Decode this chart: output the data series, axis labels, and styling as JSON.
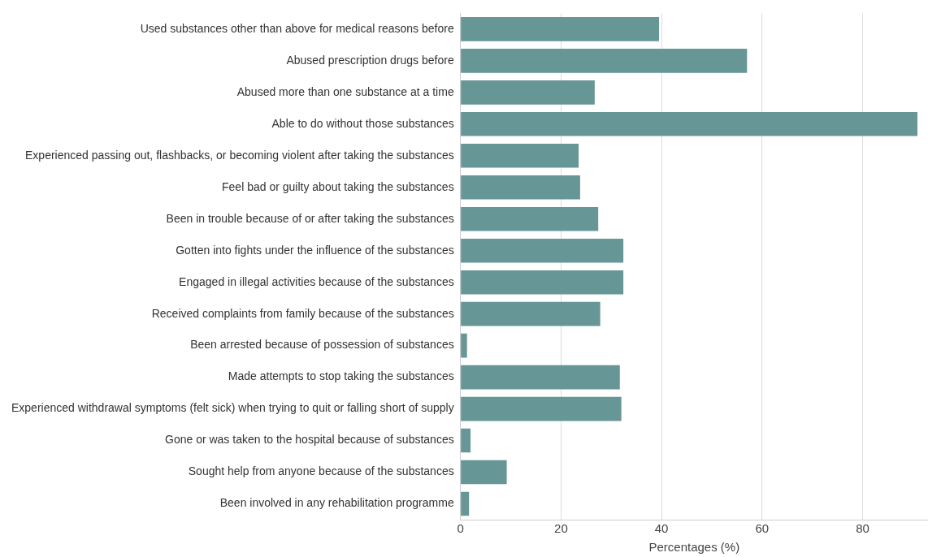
{
  "chart_data": {
    "type": "bar",
    "orientation": "horizontal",
    "xlabel": "Percentages (%)",
    "categories": [
      "Used substances other than above for medical reasons before",
      "Abused prescription drugs before",
      "Abused more than one substance at a time",
      "Able to do without those substances",
      "Experienced passing out, flashbacks, or becoming violent after taking the substances",
      "Feel bad or guilty about taking the substances",
      "Been in trouble because of or after taking the substances",
      "Gotten into fights under the influence of the substances",
      "Engaged in illegal activities because of the substances",
      "Received complaints from family because of the substances",
      "Been arrested because of possession of substances",
      "Made attempts to stop taking the substances",
      "Experienced withdrawal symptoms (felt sick) when trying to quit or falling short of supply",
      "Gone or was taken to the hospital because of substances",
      "Sought help from anyone because of the substances",
      "Been involved in any rehabilitation programme"
    ],
    "values": [
      39.5,
      57.0,
      26.7,
      90.9,
      23.5,
      23.8,
      27.4,
      32.4,
      32.4,
      27.8,
      1.3,
      31.7,
      32.0,
      2.0,
      9.2,
      1.7
    ],
    "color": "#669696",
    "xlim": [
      0,
      93
    ],
    "xticks": [
      0,
      20,
      40,
      60,
      80
    ],
    "grid": "x",
    "legend": false
  }
}
